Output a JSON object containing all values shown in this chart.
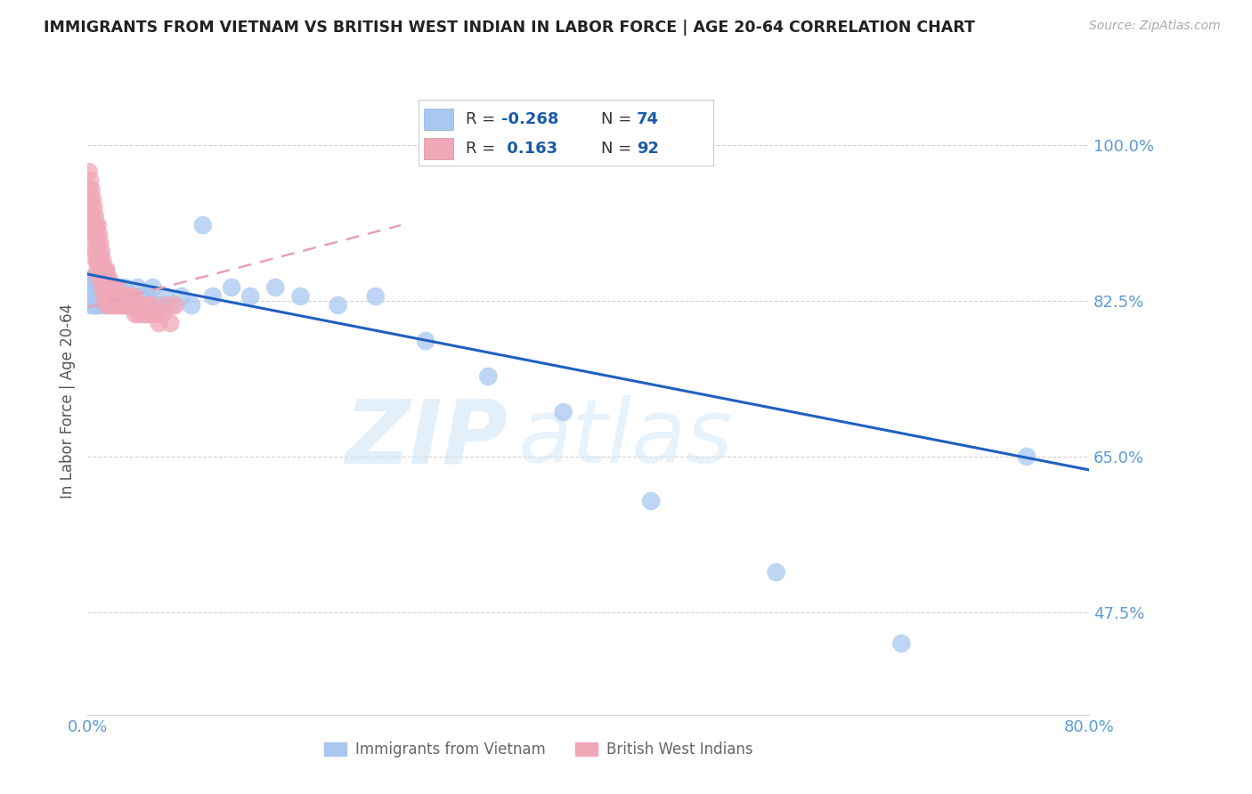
{
  "title": "IMMIGRANTS FROM VIETNAM VS BRITISH WEST INDIAN IN LABOR FORCE | AGE 20-64 CORRELATION CHART",
  "source": "Source: ZipAtlas.com",
  "ylabel": "In Labor Force | Age 20-64",
  "xlim": [
    0.0,
    0.8
  ],
  "ylim": [
    0.36,
    1.065
  ],
  "yticks": [
    0.475,
    0.65,
    0.825,
    1.0
  ],
  "ytick_labels": [
    "47.5%",
    "65.0%",
    "82.5%",
    "100.0%"
  ],
  "xtick_positions": [
    0.0,
    0.8
  ],
  "xtick_labels": [
    "0.0%",
    "80.0%"
  ],
  "tick_label_color": "#5b9bd5",
  "grid_color": "#cccccc",
  "legend_label_1": "Immigrants from Vietnam",
  "legend_label_2": "British West Indians",
  "scatter_color_1": "#a8c8f0",
  "scatter_color_2": "#f0a8b8",
  "trend_color_1": "#2060c0",
  "trend_color_2": "#e8a0b8",
  "watermark_1": "ZIP",
  "watermark_2": "atlas",
  "vietnam_x": [
    0.001,
    0.002,
    0.002,
    0.003,
    0.003,
    0.003,
    0.004,
    0.004,
    0.005,
    0.005,
    0.005,
    0.006,
    0.006,
    0.006,
    0.007,
    0.007,
    0.007,
    0.008,
    0.008,
    0.008,
    0.009,
    0.009,
    0.01,
    0.01,
    0.011,
    0.011,
    0.012,
    0.012,
    0.013,
    0.013,
    0.014,
    0.015,
    0.015,
    0.016,
    0.017,
    0.018,
    0.019,
    0.02,
    0.021,
    0.022,
    0.023,
    0.025,
    0.027,
    0.028,
    0.03,
    0.032,
    0.034,
    0.036,
    0.038,
    0.04,
    0.042,
    0.045,
    0.048,
    0.052,
    0.056,
    0.062,
    0.068,
    0.075,
    0.083,
    0.092,
    0.1,
    0.115,
    0.13,
    0.15,
    0.17,
    0.2,
    0.23,
    0.27,
    0.32,
    0.38,
    0.45,
    0.55,
    0.65,
    0.75
  ],
  "vietnam_y": [
    0.84,
    0.85,
    0.83,
    0.84,
    0.83,
    0.82,
    0.84,
    0.83,
    0.85,
    0.83,
    0.82,
    0.84,
    0.83,
    0.82,
    0.85,
    0.84,
    0.83,
    0.84,
    0.83,
    0.82,
    0.85,
    0.83,
    0.84,
    0.82,
    0.85,
    0.83,
    0.84,
    0.83,
    0.84,
    0.83,
    0.84,
    0.83,
    0.82,
    0.84,
    0.83,
    0.84,
    0.83,
    0.84,
    0.83,
    0.84,
    0.83,
    0.84,
    0.83,
    0.82,
    0.84,
    0.83,
    0.82,
    0.83,
    0.82,
    0.84,
    0.83,
    0.82,
    0.83,
    0.84,
    0.82,
    0.83,
    0.82,
    0.83,
    0.82,
    0.91,
    0.83,
    0.84,
    0.83,
    0.84,
    0.83,
    0.82,
    0.83,
    0.78,
    0.74,
    0.7,
    0.6,
    0.52,
    0.44,
    0.65
  ],
  "bwi_x": [
    0.001,
    0.001,
    0.002,
    0.002,
    0.002,
    0.003,
    0.003,
    0.003,
    0.004,
    0.004,
    0.004,
    0.005,
    0.005,
    0.005,
    0.006,
    0.006,
    0.006,
    0.007,
    0.007,
    0.007,
    0.007,
    0.008,
    0.008,
    0.008,
    0.008,
    0.009,
    0.009,
    0.009,
    0.009,
    0.01,
    0.01,
    0.01,
    0.011,
    0.011,
    0.012,
    0.012,
    0.012,
    0.013,
    0.013,
    0.013,
    0.014,
    0.014,
    0.015,
    0.015,
    0.015,
    0.016,
    0.016,
    0.017,
    0.017,
    0.018,
    0.018,
    0.019,
    0.019,
    0.02,
    0.021,
    0.021,
    0.022,
    0.022,
    0.023,
    0.024,
    0.024,
    0.025,
    0.025,
    0.026,
    0.027,
    0.027,
    0.028,
    0.028,
    0.029,
    0.03,
    0.031,
    0.032,
    0.033,
    0.034,
    0.035,
    0.036,
    0.037,
    0.038,
    0.04,
    0.041,
    0.043,
    0.045,
    0.047,
    0.048,
    0.05,
    0.052,
    0.055,
    0.057,
    0.06,
    0.063,
    0.066,
    0.07
  ],
  "bwi_y": [
    0.97,
    0.95,
    0.96,
    0.94,
    0.92,
    0.95,
    0.93,
    0.91,
    0.94,
    0.92,
    0.9,
    0.93,
    0.91,
    0.89,
    0.92,
    0.9,
    0.88,
    0.91,
    0.9,
    0.88,
    0.87,
    0.91,
    0.89,
    0.87,
    0.86,
    0.9,
    0.88,
    0.87,
    0.85,
    0.89,
    0.87,
    0.86,
    0.88,
    0.86,
    0.87,
    0.86,
    0.84,
    0.86,
    0.85,
    0.83,
    0.86,
    0.84,
    0.86,
    0.84,
    0.82,
    0.85,
    0.83,
    0.85,
    0.83,
    0.84,
    0.82,
    0.84,
    0.82,
    0.83,
    0.84,
    0.82,
    0.83,
    0.82,
    0.83,
    0.84,
    0.82,
    0.83,
    0.82,
    0.83,
    0.82,
    0.83,
    0.82,
    0.83,
    0.82,
    0.82,
    0.83,
    0.82,
    0.82,
    0.83,
    0.82,
    0.82,
    0.83,
    0.81,
    0.82,
    0.81,
    0.82,
    0.81,
    0.82,
    0.81,
    0.81,
    0.82,
    0.81,
    0.8,
    0.81,
    0.82,
    0.8,
    0.82
  ],
  "vietnam_trend_x": [
    0.0,
    0.8
  ],
  "vietnam_trend_y": [
    0.855,
    0.635
  ],
  "bwi_trend_x": [
    0.0,
    0.25
  ],
  "bwi_trend_y": [
    0.818,
    0.91
  ]
}
